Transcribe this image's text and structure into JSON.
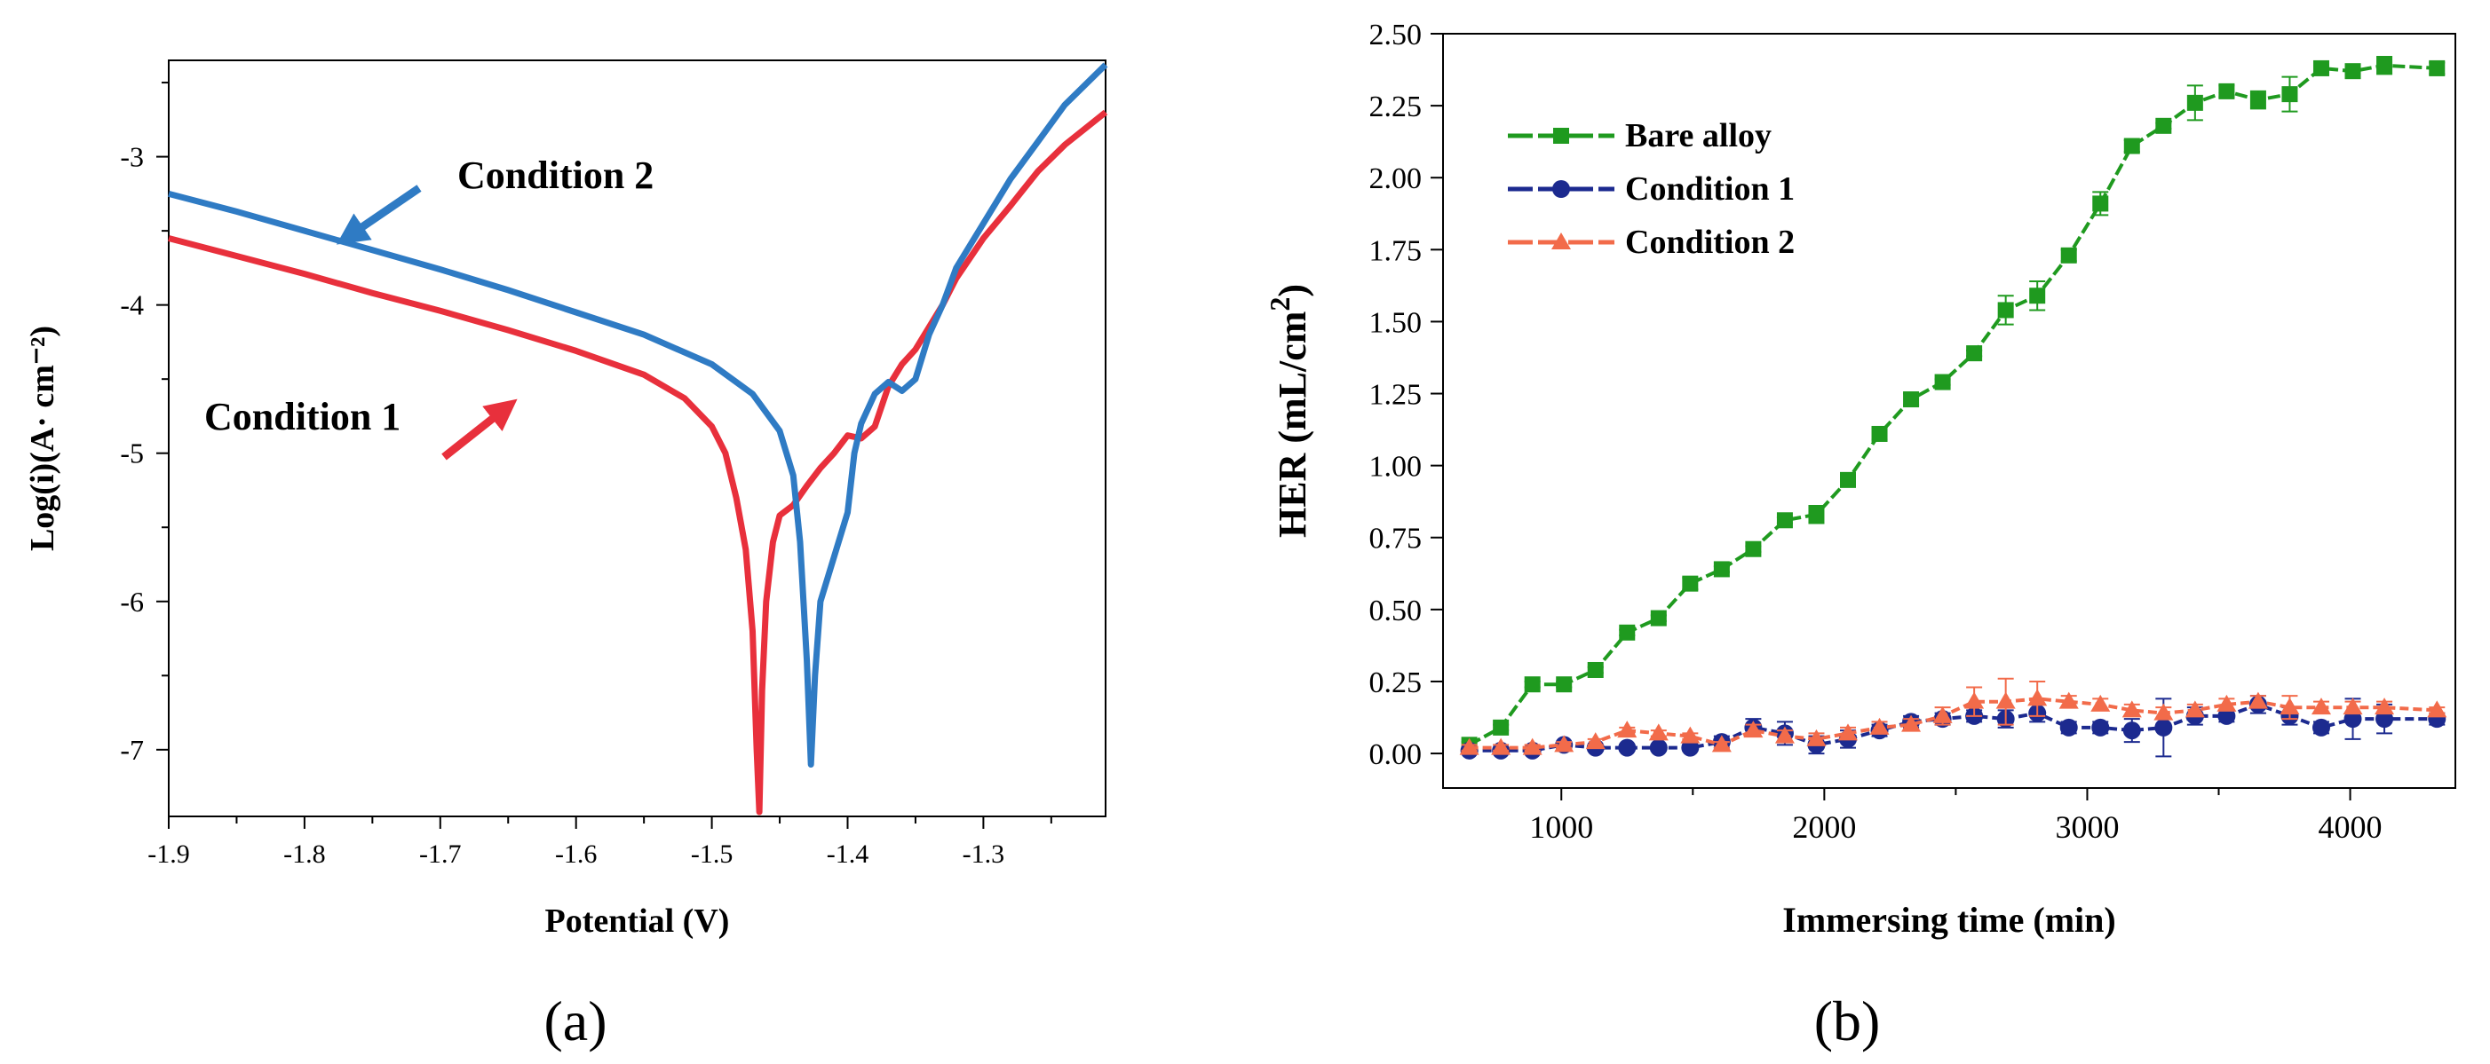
{
  "chart_data": [
    {
      "type": "line",
      "panel_label": "(a)",
      "xlabel": "Potential (V)",
      "ylabel": "Log(i)(A· cm⁻²)",
      "xlim": [
        -1.9,
        -1.21
      ],
      "ylim": [
        -7.45,
        -2.35
      ],
      "xticks": [
        -1.9,
        -1.8,
        -1.7,
        -1.6,
        -1.5,
        -1.4,
        -1.3
      ],
      "xtick_labels": [
        "-1.9",
        "-1.8",
        "-1.7",
        "-1.6",
        "-1.5",
        "-1.4",
        "-1.3"
      ],
      "yticks": [
        -7,
        -6,
        -5,
        -4,
        -3
      ],
      "ytick_labels": [
        "-7",
        "-6",
        "-5",
        "-4",
        "-3"
      ],
      "grid": false,
      "series": [
        {
          "name": "Condition 1",
          "color": "#e8303c",
          "points": [
            [
              -1.9,
              -3.55
            ],
            [
              -1.85,
              -3.67
            ],
            [
              -1.8,
              -3.79
            ],
            [
              -1.75,
              -3.92
            ],
            [
              -1.7,
              -4.04
            ],
            [
              -1.65,
              -4.17
            ],
            [
              -1.6,
              -4.31
            ],
            [
              -1.55,
              -4.47
            ],
            [
              -1.52,
              -4.63
            ],
            [
              -1.5,
              -4.82
            ],
            [
              -1.49,
              -5.0
            ],
            [
              -1.482,
              -5.3
            ],
            [
              -1.475,
              -5.65
            ],
            [
              -1.47,
              -6.2
            ],
            [
              -1.467,
              -7.0
            ],
            [
              -1.465,
              -7.42
            ],
            [
              -1.463,
              -6.6
            ],
            [
              -1.46,
              -6.0
            ],
            [
              -1.455,
              -5.6
            ],
            [
              -1.45,
              -5.42
            ],
            [
              -1.44,
              -5.35
            ],
            [
              -1.43,
              -5.22
            ],
            [
              -1.42,
              -5.1
            ],
            [
              -1.41,
              -5.0
            ],
            [
              -1.4,
              -4.88
            ],
            [
              -1.39,
              -4.9
            ],
            [
              -1.38,
              -4.82
            ],
            [
              -1.37,
              -4.55
            ],
            [
              -1.36,
              -4.4
            ],
            [
              -1.35,
              -4.3
            ],
            [
              -1.34,
              -4.15
            ],
            [
              -1.33,
              -4.0
            ],
            [
              -1.32,
              -3.82
            ],
            [
              -1.3,
              -3.55
            ],
            [
              -1.28,
              -3.33
            ],
            [
              -1.26,
              -3.1
            ],
            [
              -1.24,
              -2.92
            ],
            [
              -1.21,
              -2.7
            ]
          ]
        },
        {
          "name": "Condition 2",
          "color": "#2f7bc4",
          "points": [
            [
              -1.9,
              -3.25
            ],
            [
              -1.85,
              -3.37
            ],
            [
              -1.8,
              -3.5
            ],
            [
              -1.75,
              -3.63
            ],
            [
              -1.7,
              -3.76
            ],
            [
              -1.65,
              -3.9
            ],
            [
              -1.6,
              -4.05
            ],
            [
              -1.55,
              -4.2
            ],
            [
              -1.5,
              -4.4
            ],
            [
              -1.47,
              -4.6
            ],
            [
              -1.45,
              -4.85
            ],
            [
              -1.44,
              -5.15
            ],
            [
              -1.435,
              -5.6
            ],
            [
              -1.43,
              -6.4
            ],
            [
              -1.427,
              -7.1
            ],
            [
              -1.424,
              -6.5
            ],
            [
              -1.42,
              -6.0
            ],
            [
              -1.41,
              -5.7
            ],
            [
              -1.4,
              -5.4
            ],
            [
              -1.395,
              -5.0
            ],
            [
              -1.39,
              -4.8
            ],
            [
              -1.38,
              -4.6
            ],
            [
              -1.37,
              -4.52
            ],
            [
              -1.36,
              -4.58
            ],
            [
              -1.35,
              -4.5
            ],
            [
              -1.34,
              -4.2
            ],
            [
              -1.33,
              -4.0
            ],
            [
              -1.32,
              -3.75
            ],
            [
              -1.3,
              -3.45
            ],
            [
              -1.28,
              -3.15
            ],
            [
              -1.26,
              -2.9
            ],
            [
              -1.24,
              -2.65
            ],
            [
              -1.21,
              -2.38
            ]
          ]
        }
      ],
      "annotations": [
        {
          "text": "Condition 2",
          "color": "#2f7bc4"
        },
        {
          "text": "Condition 1",
          "color": "#e8303c"
        }
      ]
    },
    {
      "type": "line",
      "panel_label": "(b)",
      "xlabel": "Immersing time (min)",
      "ylabel": "HER (mL/cm",
      "ylabel_sup": "2",
      "xlim": [
        550,
        4400
      ],
      "ylim": [
        -0.12,
        2.5
      ],
      "xticks": [
        1000,
        2000,
        3000,
        4000
      ],
      "xtick_labels": [
        "1000",
        "2000",
        "3000",
        "4000"
      ],
      "yticks": [
        0,
        0.25,
        0.5,
        0.75,
        1.0,
        1.25,
        1.5,
        1.75,
        2.0,
        2.25,
        2.5
      ],
      "ytick_labels": [
        "0.00",
        "0.25",
        "0.50",
        "0.75",
        "1.00",
        "1.25",
        "1.50",
        "1.75",
        "2.00",
        "2.25",
        "2.50"
      ],
      "grid": false,
      "legend_position": "top-left",
      "x": [
        650,
        770,
        890,
        1010,
        1130,
        1250,
        1370,
        1490,
        1610,
        1730,
        1850,
        1970,
        2090,
        2210,
        2330,
        2450,
        2570,
        2690,
        2810,
        2930,
        3050,
        3170,
        3290,
        3410,
        3530,
        3650,
        3770,
        3890,
        4010,
        4130,
        4330
      ],
      "series": [
        {
          "name": "Bare alloy",
          "color": "#1f9a1f",
          "marker": "square",
          "values": [
            0.03,
            0.09,
            0.24,
            0.24,
            0.29,
            0.42,
            0.47,
            0.59,
            0.64,
            0.71,
            0.81,
            0.83,
            0.95,
            1.11,
            1.23,
            1.29,
            1.39,
            1.54,
            1.59,
            1.73,
            1.91,
            2.11,
            2.18,
            2.26,
            2.3,
            2.27,
            2.29,
            2.38,
            2.37,
            2.39,
            2.38
          ],
          "errors": [
            0.01,
            0.01,
            0.01,
            0.01,
            0.01,
            0.01,
            0.01,
            0.02,
            0.01,
            0.01,
            0.01,
            0.03,
            0.01,
            0.02,
            0.02,
            0.01,
            0.01,
            0.05,
            0.05,
            0.02,
            0.04,
            0.02,
            0.01,
            0.06,
            0.02,
            0.03,
            0.06,
            0.01,
            0.01,
            0.03,
            0.02
          ]
        },
        {
          "name": "Condition 1",
          "color": "#1c2a8f",
          "marker": "circle",
          "values": [
            0.01,
            0.01,
            0.01,
            0.03,
            0.02,
            0.02,
            0.02,
            0.02,
            0.04,
            0.09,
            0.07,
            0.03,
            0.05,
            0.08,
            0.11,
            0.12,
            0.13,
            0.12,
            0.14,
            0.09,
            0.09,
            0.08,
            0.09,
            0.13,
            0.13,
            0.17,
            0.13,
            0.09,
            0.12,
            0.12,
            0.12
          ],
          "errors": [
            0.01,
            0.01,
            0.01,
            0.01,
            0.01,
            0.01,
            0.01,
            0.01,
            0.02,
            0.03,
            0.04,
            0.03,
            0.03,
            0.02,
            0.02,
            0.02,
            0.02,
            0.03,
            0.03,
            0.02,
            0.02,
            0.04,
            0.1,
            0.03,
            0.02,
            0.03,
            0.03,
            0.02,
            0.07,
            0.05,
            0.02
          ]
        },
        {
          "name": "Condition 2",
          "color": "#f26b4a",
          "marker": "triangle",
          "values": [
            0.02,
            0.02,
            0.02,
            0.03,
            0.04,
            0.08,
            0.07,
            0.06,
            0.03,
            0.08,
            0.06,
            0.05,
            0.07,
            0.09,
            0.1,
            0.13,
            0.18,
            0.18,
            0.19,
            0.18,
            0.17,
            0.15,
            0.14,
            0.15,
            0.17,
            0.18,
            0.16,
            0.16,
            0.16,
            0.16,
            0.15
          ],
          "errors": [
            0.01,
            0.01,
            0.01,
            0.01,
            0.01,
            0.01,
            0.01,
            0.01,
            0.01,
            0.02,
            0.02,
            0.02,
            0.02,
            0.02,
            0.02,
            0.03,
            0.05,
            0.08,
            0.06,
            0.02,
            0.02,
            0.02,
            0.02,
            0.02,
            0.02,
            0.02,
            0.04,
            0.02,
            0.02,
            0.02,
            0.01
          ]
        }
      ]
    }
  ]
}
